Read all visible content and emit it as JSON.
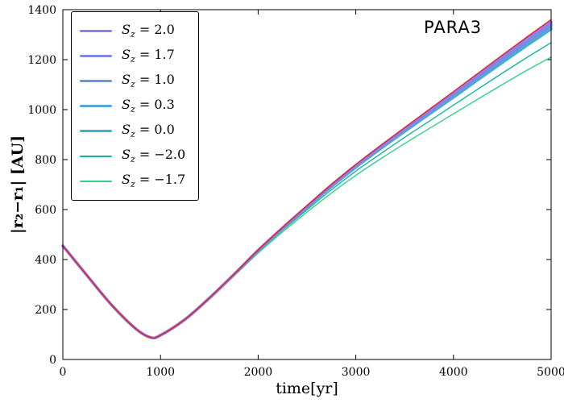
{
  "figure": {
    "annotation": "PARA3",
    "xlabel": "time[yr]",
    "ylabel": "|r₂−r₁| [AU]"
  },
  "chart_data": {
    "type": "line",
    "title": "",
    "xlabel": "time[yr]",
    "ylabel": "|r2 - r1| [AU]",
    "annotation": "PARA3",
    "xlim": [
      0,
      5000
    ],
    "ylim": [
      0,
      1400
    ],
    "xticks": [
      0,
      1000,
      2000,
      3000,
      4000,
      5000
    ],
    "yticks": [
      0,
      200,
      400,
      600,
      800,
      1000,
      1200,
      1400
    ],
    "grid": false,
    "legend_position": "upper left",
    "x": [
      0,
      250,
      500,
      750,
      900,
      1000,
      1250,
      1500,
      1750,
      2000,
      2250,
      2500,
      2750,
      3000,
      3250,
      3500,
      3750,
      4000,
      4250,
      4500,
      4750,
      5000
    ],
    "draw_order": [
      6,
      5,
      4,
      3,
      2,
      1,
      0,
      7
    ],
    "series": [
      {
        "name": "sz-2.0",
        "label": "S_z = 2.0",
        "legend_value": "2.0",
        "in_legend": true,
        "color": "#8f7fea",
        "width": 3.4,
        "values": [
          455,
          335,
          218,
          122,
          88,
          97,
          160,
          246,
          340,
          437,
          527,
          613,
          698,
          777,
          852,
          924,
          995,
          1066,
          1138,
          1210,
          1281,
          1350
        ]
      },
      {
        "name": "sz-1.7",
        "label": "S_z = 1.7",
        "legend_value": "1.7",
        "in_legend": true,
        "color": "#7d8ae6",
        "width": 3.4,
        "values": [
          455,
          335,
          218,
          122,
          88,
          97,
          160,
          246,
          339,
          437,
          526,
          612,
          696,
          775,
          849,
          921,
          992,
          1063,
          1134,
          1206,
          1276,
          1344
        ]
      },
      {
        "name": "sz-1.0",
        "label": "S_z = 1.0",
        "legend_value": "1.0",
        "in_legend": true,
        "color": "#6a96e0",
        "width": 3.4,
        "values": [
          455,
          335,
          218,
          122,
          88,
          97,
          160,
          246,
          339,
          436,
          525,
          611,
          695,
          774,
          847,
          919,
          989,
          1059,
          1130,
          1201,
          1270,
          1338
        ]
      },
      {
        "name": "sz-0.3",
        "label": "S_z = 0.3",
        "legend_value": "0.3",
        "in_legend": true,
        "color": "#54a5d8",
        "width": 3.4,
        "values": [
          455,
          335,
          218,
          122,
          88,
          97,
          160,
          245,
          339,
          436,
          524,
          610,
          693,
          771,
          844,
          915,
          985,
          1054,
          1124,
          1194,
          1263,
          1330
        ]
      },
      {
        "name": "sz-0.0",
        "label": "S_z = 0.0",
        "legend_value": "0.0",
        "in_legend": true,
        "color": "#3db4c8",
        "width": 3.4,
        "values": [
          455,
          335,
          218,
          122,
          88,
          97,
          160,
          245,
          338,
          435,
          523,
          609,
          691,
          769,
          842,
          912,
          981,
          1049,
          1119,
          1188,
          1256,
          1322
        ]
      },
      {
        "name": "sz-neg-2.0",
        "label": "S_z = −2.0",
        "legend_value": "−2.0",
        "in_legend": true,
        "color": "#16b3a2",
        "width": 1.4,
        "values": [
          455,
          335,
          218,
          122,
          88,
          97,
          159,
          244,
          336,
          431,
          517,
          599,
          679,
          754,
          822,
          889,
          953,
          1018,
          1082,
          1146,
          1208,
          1268
        ]
      },
      {
        "name": "sz-neg-1.7",
        "label": "S_z = −1.7",
        "legend_value": "−1.7",
        "in_legend": true,
        "color": "#2fd08c",
        "width": 1.4,
        "values": [
          455,
          335,
          218,
          122,
          88,
          97,
          159,
          243,
          333,
          426,
          510,
          590,
          666,
          737,
          802,
          864,
          924,
          983,
          1042,
          1100,
          1157,
          1210
        ]
      },
      {
        "name": "red-curve",
        "label": "",
        "legend_value": "",
        "in_legend": false,
        "color": "#e2262c",
        "width": 1.5,
        "values": [
          455,
          335,
          218,
          122,
          88,
          97,
          160,
          246,
          340,
          438,
          528,
          615,
          700,
          780,
          855,
          928,
          1000,
          1072,
          1145,
          1218,
          1290,
          1360
        ]
      }
    ]
  }
}
